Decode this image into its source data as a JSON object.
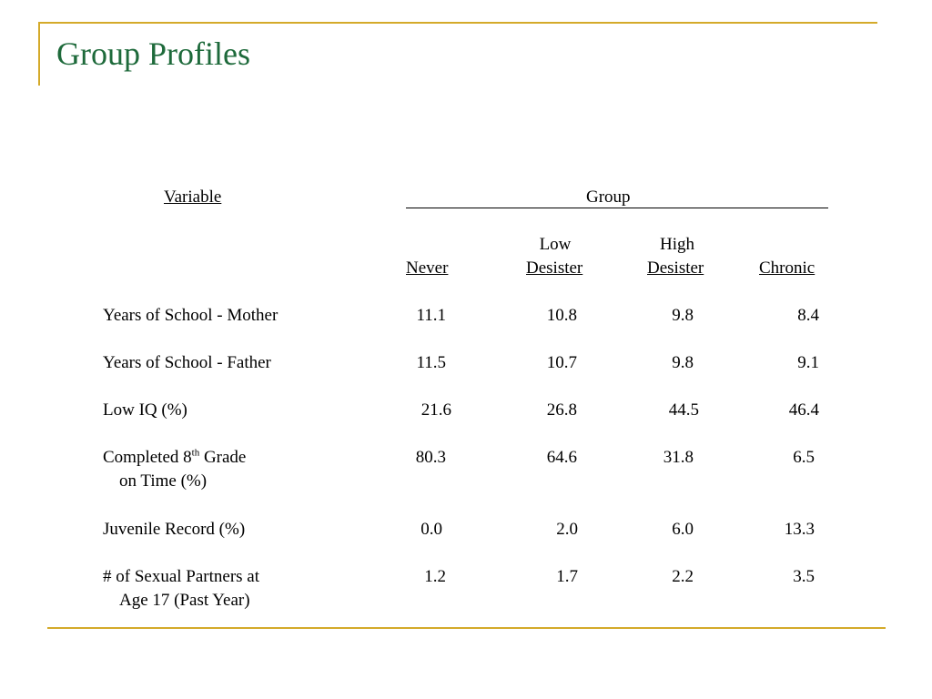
{
  "slide": {
    "title": "Group Profiles"
  },
  "table": {
    "variable_header": "Variable",
    "group_header": "Group",
    "columns": [
      {
        "line1": "",
        "line2": "Never"
      },
      {
        "line1": "Low",
        "line2": "Desister"
      },
      {
        "line1": "High",
        "line2": "Desister"
      },
      {
        "line1": "",
        "line2": "Chronic"
      }
    ],
    "rows": [
      {
        "label": "Years of School - Mother",
        "label2": "",
        "values": [
          "11.1",
          "10.8",
          "9.8",
          "8.4"
        ]
      },
      {
        "label": "Years of School - Father",
        "label2": "",
        "values": [
          "11.5",
          "10.7",
          "9.8",
          "9.1"
        ]
      },
      {
        "label": "Low IQ (%)",
        "label2": "",
        "values": [
          "21.6",
          "26.8",
          "44.5",
          "46.4"
        ]
      },
      {
        "label_pre": "Completed 8",
        "label_sup": "th",
        "label_post": " Grade",
        "label2": "on Time (%)",
        "values": [
          "80.3",
          "64.6",
          "31.8",
          "6.5"
        ]
      },
      {
        "label": "Juvenile Record (%)",
        "label2": "",
        "values": [
          "0.0",
          "2.0",
          "6.0",
          "13.3"
        ]
      },
      {
        "label": "# of Sexual Partners at",
        "label2": "Age 17 (Past Year)",
        "values": [
          "1.2",
          "1.7",
          "2.2",
          "3.5"
        ]
      }
    ]
  },
  "colors": {
    "accent": "#d4aa2a",
    "title": "#1e6a3b"
  }
}
